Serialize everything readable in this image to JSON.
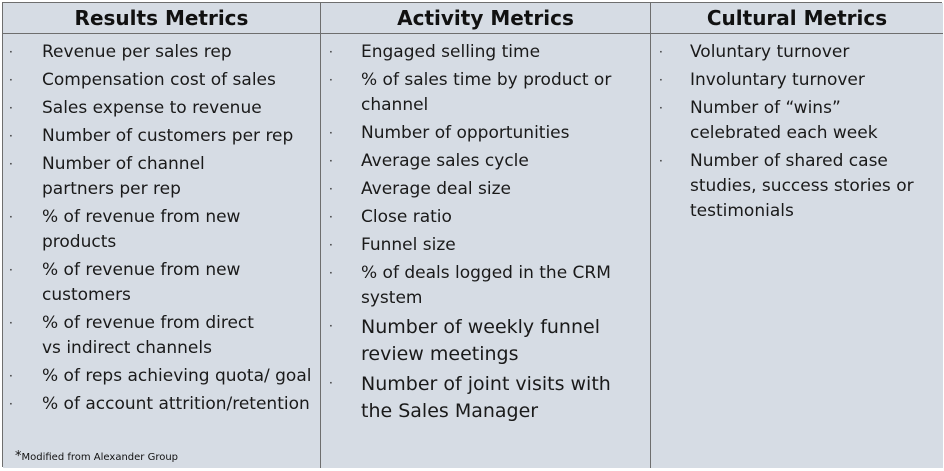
{
  "columns": [
    {
      "header": "Results Metrics",
      "items": [
        "Revenue per sales rep",
        "Compensation cost of sales",
        "Sales expense to revenue",
        "Number of customers per rep",
        "Number of channel partners per rep",
        "% of revenue from new products",
        "% of revenue from new customers",
        "% of revenue from direct vs indirect channels",
        "% of reps achieving quota/ goal",
        "% of account attrition/retention"
      ]
    },
    {
      "header": "Activity Metrics",
      "items": [
        "Engaged selling time",
        "% of sales time by product or channel",
        "Number of opportunities",
        "Average sales cycle",
        "Average deal size",
        "Close ratio",
        "Funnel size",
        "% of deals logged in the CRM system",
        "Number of weekly funnel review meetings",
        "Number of joint visits with the Sales Manager"
      ]
    },
    {
      "header": "Cultural Metrics",
      "items": [
        "Voluntary turnover",
        "Involuntary turnover",
        "Number of “wins” celebrated each week",
        "Number of shared case studies, success stories or testimonials"
      ]
    }
  ],
  "bullet": "·",
  "footnote": {
    "star": "*",
    "text": "Modified from Alexander Group"
  }
}
